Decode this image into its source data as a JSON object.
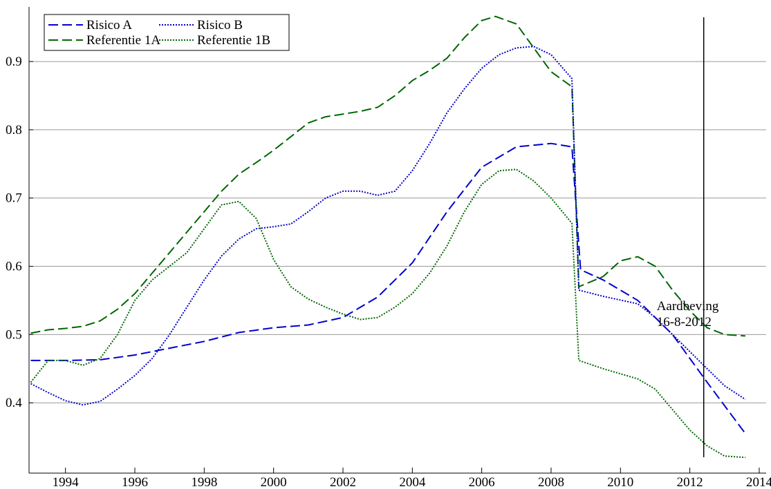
{
  "chart_data": {
    "type": "line",
    "xlim": [
      1992.95,
      2014.2
    ],
    "ylim": [
      0.297,
      0.98
    ],
    "xticks": [
      1994,
      1996,
      1998,
      2000,
      2002,
      2004,
      2006,
      2008,
      2010,
      2012,
      2014
    ],
    "yticks": [
      0.4,
      0.5,
      0.6,
      0.7,
      0.8,
      0.9
    ],
    "grid": true,
    "legend": "upper-left",
    "annotation": {
      "x": 2012.4,
      "lines": [
        "Aardbeving",
        "16-8-2012"
      ]
    },
    "series": [
      {
        "name": "Risico A",
        "color": "#0000cc",
        "dash": "dashed",
        "x": [
          1993,
          1994,
          1995,
          1996,
          1997,
          1998,
          1999,
          2000,
          2001,
          2002,
          2003,
          2004,
          2005,
          2006,
          2007,
          2008,
          2008.6,
          2008.85,
          2009.5,
          2010.5,
          2011.5,
          2012.5,
          2013.6
        ],
        "values": [
          0.462,
          0.462,
          0.463,
          0.47,
          0.48,
          0.49,
          0.503,
          0.51,
          0.514,
          0.525,
          0.555,
          0.605,
          0.68,
          0.745,
          0.775,
          0.78,
          0.775,
          0.595,
          0.58,
          0.55,
          0.5,
          0.43,
          0.355
        ]
      },
      {
        "name": "Referentie 1A",
        "color": "#006600",
        "dash": "dashed",
        "x": [
          1993,
          1993.5,
          1994,
          1994.5,
          1995,
          1995.5,
          1996,
          1996.5,
          1997,
          1997.5,
          1998,
          1998.5,
          1999,
          1999.5,
          2000,
          2000.5,
          2001,
          2001.5,
          2002,
          2002.5,
          2003,
          2003.5,
          2004,
          2004.5,
          2005,
          2005.5,
          2006,
          2006.4,
          2007,
          2007.5,
          2008,
          2008.6,
          2008.8,
          2009.5,
          2010,
          2010.5,
          2011,
          2011.5,
          2012,
          2012.5,
          2013,
          2013.6
        ],
        "values": [
          0.502,
          0.507,
          0.509,
          0.512,
          0.52,
          0.537,
          0.56,
          0.59,
          0.62,
          0.65,
          0.68,
          0.71,
          0.735,
          0.752,
          0.77,
          0.79,
          0.81,
          0.819,
          0.823,
          0.827,
          0.833,
          0.85,
          0.872,
          0.887,
          0.905,
          0.935,
          0.96,
          0.966,
          0.955,
          0.92,
          0.885,
          0.863,
          0.57,
          0.585,
          0.608,
          0.614,
          0.6,
          0.565,
          0.535,
          0.51,
          0.5,
          0.498
        ]
      },
      {
        "name": "Risico B",
        "color": "#0000cc",
        "dash": "dotted",
        "x": [
          1993,
          1993.5,
          1994,
          1994.5,
          1995,
          1995.5,
          1996,
          1996.5,
          1997,
          1997.5,
          1998,
          1998.5,
          1999,
          1999.5,
          2000,
          2000.5,
          2001,
          2001.5,
          2002,
          2002.5,
          2003,
          2003.5,
          2004,
          2004.5,
          2005,
          2005.5,
          2006,
          2006.5,
          2007,
          2007.5,
          2008,
          2008.6,
          2008.8,
          2009.5,
          2010.5,
          2011,
          2011.5,
          2012,
          2012.5,
          2013,
          2013.6
        ],
        "values": [
          0.428,
          0.415,
          0.403,
          0.397,
          0.402,
          0.42,
          0.44,
          0.465,
          0.5,
          0.54,
          0.58,
          0.615,
          0.64,
          0.655,
          0.658,
          0.662,
          0.68,
          0.7,
          0.71,
          0.71,
          0.704,
          0.71,
          0.74,
          0.78,
          0.825,
          0.86,
          0.89,
          0.91,
          0.92,
          0.922,
          0.91,
          0.875,
          0.565,
          0.556,
          0.545,
          0.525,
          0.5,
          0.475,
          0.45,
          0.425,
          0.405
        ]
      },
      {
        "name": "Referentie 1B",
        "color": "#006600",
        "dash": "dotted",
        "x": [
          1993,
          1993.5,
          1994,
          1994.5,
          1995,
          1995.5,
          1996,
          1996.5,
          1997,
          1997.5,
          1998,
          1998.5,
          1999,
          1999.5,
          2000,
          2000.5,
          2001,
          2001.5,
          2002,
          2002.5,
          2003,
          2003.5,
          2004,
          2004.5,
          2005,
          2005.5,
          2006,
          2006.5,
          2007,
          2007.5,
          2008,
          2008.6,
          2008.8,
          2009.5,
          2010.5,
          2011,
          2011.5,
          2012,
          2012.5,
          2013,
          2013.6
        ],
        "values": [
          0.43,
          0.462,
          0.462,
          0.455,
          0.465,
          0.5,
          0.55,
          0.58,
          0.6,
          0.62,
          0.655,
          0.69,
          0.695,
          0.67,
          0.61,
          0.57,
          0.552,
          0.54,
          0.53,
          0.522,
          0.525,
          0.54,
          0.56,
          0.59,
          0.63,
          0.68,
          0.72,
          0.74,
          0.742,
          0.725,
          0.7,
          0.663,
          0.462,
          0.45,
          0.435,
          0.42,
          0.39,
          0.36,
          0.337,
          0.322,
          0.32
        ]
      }
    ]
  }
}
